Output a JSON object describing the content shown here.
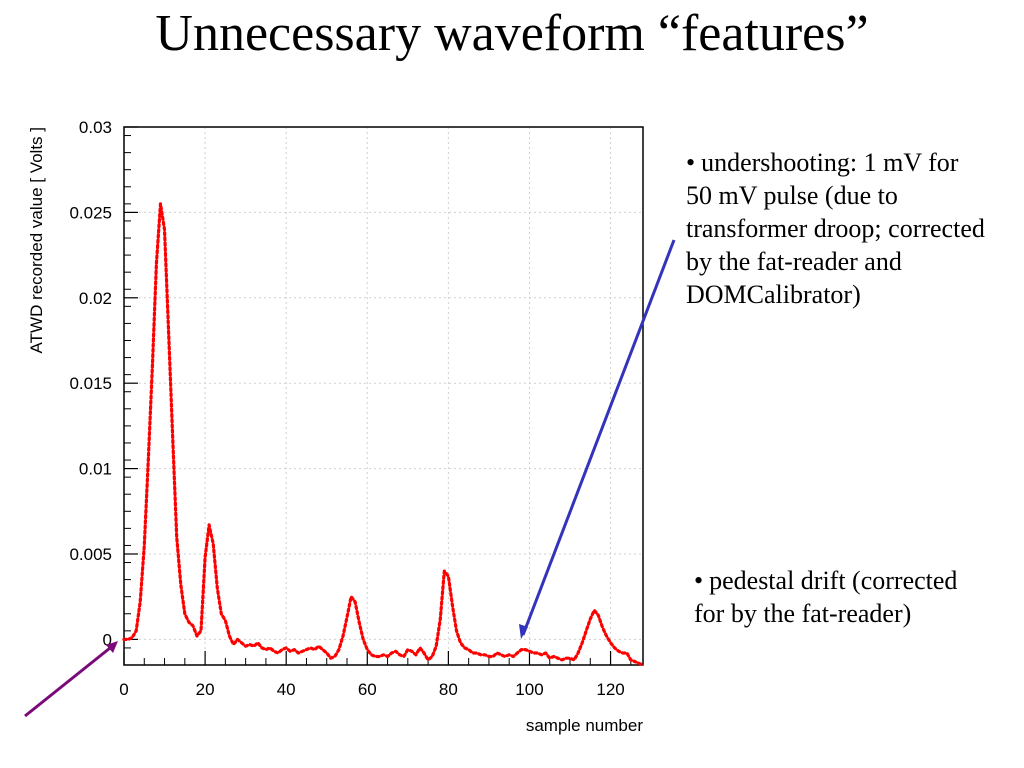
{
  "slide": {
    "title": "Unnecessary waveform “features”"
  },
  "annotations": [
    {
      "bullet": "•",
      "text": "undershooting: 1 mV for 50 mV pulse (due to transformer droop; corrected by the fat-reader and DOMCalibrator)",
      "arrow_color": "#3333bb"
    },
    {
      "bullet": "•",
      "text": "pedestal drift (corrected for by the fat-reader)",
      "arrow_color": "#7a0a7a"
    }
  ],
  "chart_data": {
    "type": "line",
    "xlabel": "sample number",
    "ylabel": "ATWD recorded value [ Volts ]",
    "xlim": [
      0,
      128
    ],
    "ylim": [
      -0.0015,
      0.03
    ],
    "xticks": [
      0,
      20,
      40,
      60,
      80,
      100,
      120
    ],
    "yticks": [
      0,
      0.005,
      0.01,
      0.015,
      0.02,
      0.025,
      0.03
    ],
    "ytick_labels": [
      "0",
      "0.005",
      "0.01",
      "0.015",
      "0.02",
      "0.025",
      "0.03"
    ],
    "grid": true,
    "line_style": "dotted",
    "series": [
      {
        "color": "#ff0000",
        "x": [
          0,
          1,
          2,
          3,
          4,
          5,
          6,
          7,
          8,
          9,
          10,
          11,
          12,
          13,
          14,
          15,
          16,
          17,
          18,
          19,
          20,
          21,
          22,
          23,
          24,
          25,
          26,
          27,
          28,
          29,
          30,
          31,
          32,
          33,
          34,
          35,
          36,
          37,
          38,
          39,
          40,
          41,
          42,
          43,
          44,
          45,
          46,
          47,
          48,
          49,
          50,
          51,
          52,
          53,
          54,
          55,
          56,
          57,
          58,
          59,
          60,
          61,
          62,
          63,
          64,
          65,
          66,
          67,
          68,
          69,
          70,
          71,
          72,
          73,
          74,
          75,
          76,
          77,
          78,
          79,
          80,
          81,
          82,
          83,
          84,
          85,
          86,
          87,
          88,
          89,
          90,
          91,
          92,
          93,
          94,
          95,
          96,
          97,
          98,
          99,
          100,
          101,
          102,
          103,
          104,
          105,
          106,
          107,
          108,
          109,
          110,
          111,
          112,
          113,
          114,
          115,
          116,
          117,
          118,
          119,
          120,
          121,
          122,
          123,
          124,
          125,
          126,
          127,
          128
        ],
        "y": [
          0.0,
          0.0,
          0.0001,
          0.0005,
          0.0022,
          0.0055,
          0.0105,
          0.016,
          0.022,
          0.0255,
          0.024,
          0.018,
          0.0118,
          0.006,
          0.0032,
          0.0015,
          0.001,
          0.0008,
          0.0002,
          0.0005,
          0.0048,
          0.0067,
          0.0056,
          0.003,
          0.0015,
          0.0011,
          0.0002,
          -0.0003,
          0.0,
          -0.0002,
          -0.0004,
          -0.0003,
          -0.0004,
          -0.0002,
          -0.0005,
          -0.0006,
          -0.0005,
          -0.0007,
          -0.0008,
          -0.0006,
          -0.0005,
          -0.0007,
          -0.0006,
          -0.0008,
          -0.0007,
          -0.0006,
          -0.0005,
          -0.0006,
          -0.0004,
          -0.0006,
          -0.0008,
          -0.0011,
          -0.001,
          -0.0006,
          0.0002,
          0.0013,
          0.0025,
          0.0022,
          0.001,
          0.0,
          -0.0006,
          -0.0009,
          -0.001,
          -0.001,
          -0.0009,
          -0.001,
          -0.0008,
          -0.0007,
          -0.0009,
          -0.001,
          -0.0006,
          -0.0007,
          -0.0009,
          -0.0005,
          -0.0008,
          -0.0012,
          -0.001,
          -0.0004,
          0.0012,
          0.004,
          0.0037,
          0.002,
          0.0005,
          -0.0002,
          -0.0005,
          -0.0006,
          -0.0008,
          -0.0008,
          -0.0009,
          -0.0009,
          -0.001,
          -0.001,
          -0.0008,
          -0.0009,
          -0.001,
          -0.0009,
          -0.001,
          -0.0008,
          -0.0006,
          -0.0006,
          -0.0007,
          -0.0008,
          -0.0008,
          -0.0009,
          -0.0008,
          -0.0011,
          -0.001,
          -0.0011,
          -0.0012,
          -0.0011,
          -0.0011,
          -0.0012,
          -0.0008,
          -0.0002,
          0.0005,
          0.0012,
          0.0017,
          0.0014,
          0.0007,
          0.0002,
          -0.0002,
          -0.0005,
          -0.0007,
          -0.0008,
          -0.0008,
          -0.0012,
          -0.0013,
          -0.0014,
          -0.0015
        ]
      }
    ]
  }
}
